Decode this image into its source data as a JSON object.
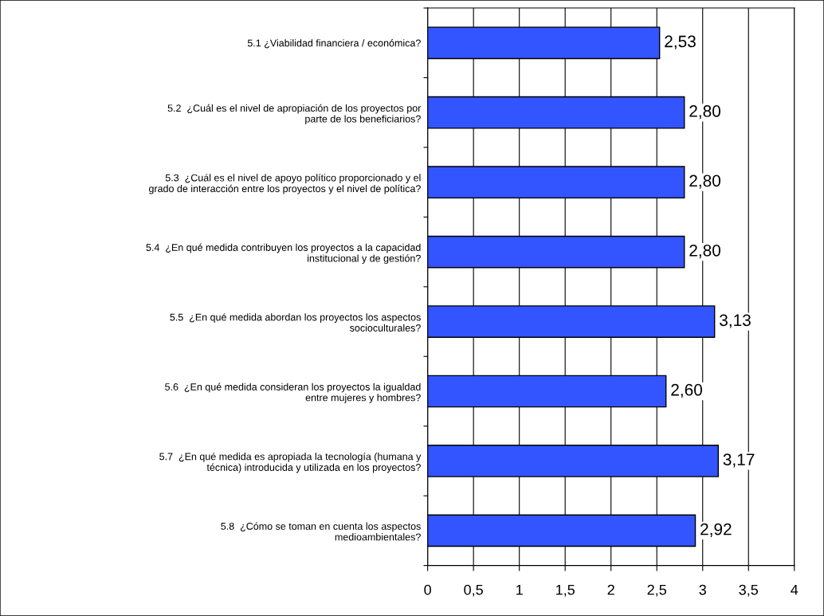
{
  "chart_data": {
    "type": "bar",
    "orientation": "horizontal",
    "categories": [
      "5.1 ¿Viabilidad financiera / económica?",
      "5.2  ¿Cuál es el nivel de apropiación de los proyectos por\nparte de los beneficiarios?",
      "5.3  ¿Cuál es el nivel de apoyo político proporcionado y el\ngrado de interacción entre los proyectos y el nivel de política?",
      "5.4  ¿En qué medida contribuyen los proyectos a la capacidad\ninstitucional y de gestión?",
      "5.5  ¿En qué medida abordan los proyectos los aspectos\nsocioculturales?",
      "5.6  ¿En qué medida consideran los proyectos la igualdad\nentre mujeres y hombres?",
      "5.7  ¿En qué medida es apropiada la tecnología (humana y\ntécnica) introducida y utilizada en los proyectos?",
      "5.8  ¿Cómo se toman en cuenta los aspectos\nmedioambientales?"
    ],
    "values": [
      2.53,
      2.8,
      2.8,
      2.8,
      3.13,
      2.6,
      3.17,
      2.92
    ],
    "value_labels": [
      "2,53",
      "2,80",
      "2,80",
      "2,80",
      "3,13",
      "2,60",
      "3,17",
      "2,92"
    ],
    "color": "#3355ff",
    "xlim": [
      0,
      4
    ],
    "xticks": [
      0,
      {
        "value": 0.5,
        "label": "0,5"
      },
      1,
      {
        "value": 1.5,
        "label": "1,5"
      },
      2,
      {
        "value": 2.5,
        "label": "2,5"
      },
      3,
      {
        "value": 3.5,
        "label": "3,5"
      },
      4
    ],
    "grid": "x",
    "legend": false
  }
}
